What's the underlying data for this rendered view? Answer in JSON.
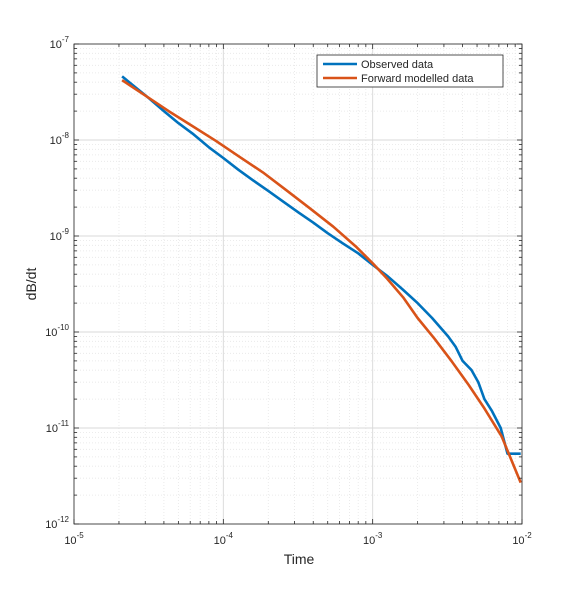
{
  "chart_data": {
    "type": "line",
    "xlabel": "Time",
    "ylabel": "dB/dt",
    "xscale": "log",
    "yscale": "log",
    "xlim": [
      1e-05,
      0.01
    ],
    "ylim": [
      1e-12,
      1e-07
    ],
    "grid": true,
    "minor_grid": true,
    "legend_position": "top-right",
    "x_ticks": [
      {
        "base": "10",
        "exp": "-5"
      },
      {
        "base": "10",
        "exp": "-4"
      },
      {
        "base": "10",
        "exp": "-3"
      },
      {
        "base": "10",
        "exp": "-2"
      }
    ],
    "y_ticks": [
      {
        "base": "10",
        "exp": "-12"
      },
      {
        "base": "10",
        "exp": "-11"
      },
      {
        "base": "10",
        "exp": "-10"
      },
      {
        "base": "10",
        "exp": "-9"
      },
      {
        "base": "10",
        "exp": "-8"
      },
      {
        "base": "10",
        "exp": "-7"
      }
    ],
    "series": [
      {
        "name": "Observed data",
        "color": "#0072bd",
        "points": [
          [
            2.1e-05,
            4.6e-08
          ],
          [
            2.6e-05,
            3.5e-08
          ],
          [
            3.2e-05,
            2.7e-08
          ],
          [
            4e-05,
            2e-08
          ],
          [
            5e-05,
            1.5e-08
          ],
          [
            6.3e-05,
            1.15e-08
          ],
          [
            8e-05,
            8.4e-09
          ],
          [
            0.0001,
            6.5e-09
          ],
          [
            0.000126,
            4.9e-09
          ],
          [
            0.000158,
            3.8e-09
          ],
          [
            0.0002,
            2.95e-09
          ],
          [
            0.00025,
            2.3e-09
          ],
          [
            0.00032,
            1.75e-09
          ],
          [
            0.0004,
            1.38e-09
          ],
          [
            0.0005,
            1.07e-09
          ],
          [
            0.00063,
            8.4e-10
          ],
          [
            0.0008,
            6.6e-10
          ],
          [
            0.001,
            5e-10
          ],
          [
            0.00126,
            3.8e-10
          ],
          [
            0.00158,
            2.8e-10
          ],
          [
            0.002,
            2e-10
          ],
          [
            0.0025,
            1.4e-10
          ],
          [
            0.0032,
            9e-11
          ],
          [
            0.0036,
            7e-11
          ],
          [
            0.004,
            5e-11
          ],
          [
            0.0046,
            4e-11
          ],
          [
            0.0051,
            3e-11
          ],
          [
            0.0056,
            2e-11
          ],
          [
            0.0063,
            1.5e-11
          ],
          [
            0.0072,
            1e-11
          ],
          [
            0.008,
            5.4e-12
          ],
          [
            0.0098,
            5.4e-12
          ]
        ]
      },
      {
        "name": "Forward modelled data",
        "color": "#d95319",
        "points": [
          [
            2.1e-05,
            4.2e-08
          ],
          [
            3e-05,
            2.9e-08
          ],
          [
            4.3e-05,
            2e-08
          ],
          [
            6.2e-05,
            1.4e-08
          ],
          [
            8.9e-05,
            9.8e-09
          ],
          [
            0.000128,
            6.7e-09
          ],
          [
            0.000184,
            4.6e-09
          ],
          [
            0.000264,
            3e-09
          ],
          [
            0.000379,
            1.95e-09
          ],
          [
            0.000545,
            1.25e-09
          ],
          [
            0.000783,
            7.6e-10
          ],
          [
            0.001,
            5.2e-10
          ],
          [
            0.00125,
            3.6e-10
          ],
          [
            0.0016,
            2.3e-10
          ],
          [
            0.002,
            1.4e-10
          ],
          [
            0.0026,
            8.5e-11
          ],
          [
            0.0034,
            4.9e-11
          ],
          [
            0.0044,
            2.8e-11
          ],
          [
            0.0056,
            1.6e-11
          ],
          [
            0.0073,
            8.2e-12
          ],
          [
            0.0098,
            2.7e-12
          ]
        ]
      }
    ]
  }
}
